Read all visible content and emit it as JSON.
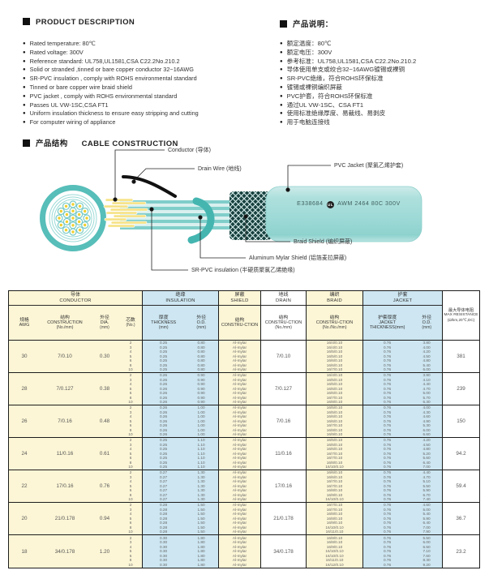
{
  "left_panel": {
    "heading": "PRODUCT DESCRIPTION",
    "items": [
      "Rated temperature: 80℃",
      "Rated voltage: 300V",
      "Reference standard: UL758,UL1581,CSA C22.2No.210.2",
      "Solid or stranded ,tinned or bare copper conductor 32~16AWG",
      "SR-PVC insulation , comply with ROHS environmental standard",
      "Tinned or bare copper wire braid shield",
      "PVC jacket , comply with ROHS environmental standard",
      "Passes UL VW-1SC,CSA FT1",
      "Uniform insulation thickness to ensure easy stripping and cutting",
      "For computer wiring of appliance"
    ]
  },
  "right_panel": {
    "heading": "产品说明：",
    "items": [
      "额定温度：80℃",
      "额定电压：300V",
      "参考标准：UL758,UL1581,CSA C22.2No.210.2",
      "导体使用单支或绞合32~16AWG镀锡或裸铜",
      "SR-PVC绝缘，符合ROHS环保标准",
      "镀锡或裸铜编织屏蔽",
      "PVC护套，符合ROHS环保标准",
      "通过UL VW-1SC、CSA FT1",
      "使用标准绝缘厚度、易裁线、易剥皮",
      "用于电脑连接线"
    ]
  },
  "construction": {
    "heading_cn": "产品结构",
    "heading_en": "CABLE CONSTRUCTION",
    "labels": {
      "conductor": "Conductor (导体)",
      "drain_wire": "Drain Wire (地线)",
      "pvc_jacket": "PVC Jacket (聚氯乙烯护套)",
      "braid_shield": "Braid Shield (编织屏蔽)",
      "aluminum_mylar": "Aluminum Mylar Shield (铝箔麦拉屏蔽)",
      "sr_pvc": "SR-PVC insulation (半硬质聚氯乙烯绝缘)"
    },
    "jacket_print": {
      "ul_file": "E338684",
      "ul_mark": "UL",
      "spec": "AWM 2464 80C 300V"
    },
    "colors": {
      "teal": "#57BEB9",
      "light_teal": "#A9DEDB",
      "yellow": "#F6E286",
      "braid_dark": "#17403e"
    }
  },
  "table": {
    "groups": [
      {
        "cn": "导体",
        "en": "CONDUCTOR"
      },
      {
        "cn": "绝缘",
        "en": "INSULATION"
      },
      {
        "cn": "屏蔽",
        "en": "SHIELD"
      },
      {
        "cn": "地线",
        "en": "DRAIN"
      },
      {
        "cn": "编织",
        "en": "BRAID"
      },
      {
        "cn": "护套",
        "en": "JACKET"
      }
    ],
    "resistance_header": {
      "cn": "最大导体电阻",
      "en": "MAX RESISTANCE",
      "unit": "(Ω/km,20℃,DC)"
    },
    "columns": [
      {
        "cn": "规格",
        "en": "AWG",
        "unit": ""
      },
      {
        "cn": "结构",
        "en": "CONSTRUCTION",
        "unit": "(No./mm)"
      },
      {
        "cn": "外径",
        "en": "DIA.",
        "unit": "(mm)"
      },
      {
        "cn": "芯数",
        "en": "",
        "unit": "(No.)"
      },
      {
        "cn": "厚度",
        "en": "THICKNESS",
        "unit": "(mm)"
      },
      {
        "cn": "外径",
        "en": "O.D.",
        "unit": "(mm)"
      },
      {
        "cn": "结构",
        "en": "CONSTRU-CTION",
        "unit": ""
      },
      {
        "cn": "结构",
        "en": "CONSTRU-CTION",
        "unit": "(No./mm)"
      },
      {
        "cn": "结构",
        "en": "CONSTRU-CTION",
        "unit": "(No./No./mm)"
      },
      {
        "cn": "护套厚度",
        "en": "JACKET THICKNESS(mm)",
        "unit": ""
      },
      {
        "cn": "外径",
        "en": "O.D.",
        "unit": "(mm)"
      }
    ],
    "rows": [
      {
        "awg": "30",
        "construction": "7/0.10",
        "dia": "0.30",
        "cores": [
          "2",
          "3",
          "4",
          "5",
          "6",
          "8",
          "10"
        ],
        "ins_thickness": "0.25",
        "ins_od": "0.80",
        "shield": "Al-mylar",
        "drain": "7/0.10",
        "braid": [
          "16/4/0.10",
          "16/4/0.10",
          "16/5/0.10",
          "16/5/0.10",
          "16/6/0.10",
          "16/6/0.10",
          "16/7/0.10"
        ],
        "jacket_thickness": "0.76",
        "jacket_od": [
          "3.80",
          "4.00",
          "4.20",
          "4.50",
          "4.80",
          "5.40",
          "6.00"
        ],
        "resistance": "381"
      },
      {
        "awg": "28",
        "construction": "7/0.127",
        "dia": "0.38",
        "cores": [
          "2",
          "3",
          "4",
          "5",
          "6",
          "8",
          "10"
        ],
        "ins_thickness": "0.26",
        "ins_od": "0.90",
        "shield": "Al-mylar",
        "drain": "7/0.127",
        "braid": [
          "16/4/0.10",
          "16/5/0.10",
          "16/5/0.10",
          "16/6/0.10",
          "16/6/0.10",
          "16/7/0.10",
          "16/8/0.10"
        ],
        "jacket_thickness": "0.76",
        "jacket_od": [
          "3.90",
          "4.10",
          "4.40",
          "4.70",
          "5.00",
          "5.70",
          "6.30"
        ],
        "resistance": "239"
      },
      {
        "awg": "26",
        "construction": "7/0.16",
        "dia": "0.48",
        "cores": [
          "2",
          "3",
          "4",
          "5",
          "6",
          "8",
          "10"
        ],
        "ins_thickness": "0.26",
        "ins_od": "1.00",
        "shield": "Al-mylar",
        "drain": "7/0.16",
        "braid": [
          "16/5/0.10",
          "16/5/0.10",
          "16/6/0.10",
          "16/6/0.10",
          "16/7/0.10",
          "16/8/0.10",
          "16/9/0.10"
        ],
        "jacket_thickness": "0.76",
        "jacket_od": [
          "4.00",
          "4.30",
          "4.60",
          "4.90",
          "5.30",
          "6.00",
          "6.60"
        ],
        "resistance": "150"
      },
      {
        "awg": "24",
        "construction": "11/0.16",
        "dia": "0.61",
        "cores": [
          "2",
          "3",
          "4",
          "5",
          "6",
          "8",
          "10"
        ],
        "ins_thickness": "0.25",
        "ins_od": "1.10",
        "shield": "Al-mylar",
        "drain": "11/0.16",
        "braid": [
          "16/5/0.10",
          "16/6/0.10",
          "16/6/0.10",
          "16/7/0.10",
          "16/7/0.10",
          "16/8/0.10",
          "16/10/0.10"
        ],
        "jacket_thickness": "0.76",
        "jacket_od": [
          "4.20",
          "4.50",
          "4.80",
          "5.20",
          "5.60",
          "6.40",
          "7.00"
        ],
        "resistance": "94.2"
      },
      {
        "awg": "22",
        "construction": "17/0.16",
        "dia": "0.76",
        "cores": [
          "2",
          "3",
          "4",
          "5",
          "6",
          "8",
          "10"
        ],
        "ins_thickness": "0.27",
        "ins_od": "1.30",
        "shield": "Al-mylar",
        "drain": "17/0.16",
        "braid": [
          "16/6/0.10",
          "16/6/0.10",
          "16/7/0.10",
          "16/7/0.10",
          "16/8/0.10",
          "16/9/0.10",
          "16/10/0.10"
        ],
        "jacket_thickness": "0.76",
        "jacket_od": [
          "4.40",
          "4.70",
          "5.10",
          "5.50",
          "5.90",
          "6.70",
          "7.40"
        ],
        "resistance": "59.4"
      },
      {
        "awg": "20",
        "construction": "21/0.178",
        "dia": "0.94",
        "cores": [
          "2",
          "3",
          "4",
          "5",
          "6",
          "8",
          "10"
        ],
        "ins_thickness": "0.28",
        "ins_od": "1.50",
        "shield": "Al-mylar",
        "drain": "21/0.178",
        "braid": [
          "16/7/0.10",
          "16/7/0.10",
          "16/8/0.10",
          "16/8/0.10",
          "16/9/0.10",
          "16/10/0.10",
          "16/11/0.10"
        ],
        "jacket_thickness": "0.76",
        "jacket_od": [
          "4.60",
          "5.00",
          "5.40",
          "5.90",
          "6.40",
          "7.00",
          "7.90"
        ],
        "resistance": "36.7"
      },
      {
        "awg": "18",
        "construction": "34/0.178",
        "dia": "1.20",
        "cores": [
          "2",
          "3",
          "4",
          "5",
          "6",
          "8",
          "10"
        ],
        "ins_thickness": "0.30",
        "ins_od": "1.80",
        "shield": "Al-mylar",
        "drain": "34/0.178",
        "braid": [
          "16/8/0.10",
          "16/8/0.10",
          "16/9/0.10",
          "16/10/0.10",
          "16/10/0.10",
          "16/11/0.10",
          "16/12/0.10"
        ],
        "jacket_thickness": "0.76",
        "jacket_od": [
          "5.50",
          "6.00",
          "6.50",
          "7.10",
          "7.60",
          "8.30",
          "9.20"
        ],
        "resistance": "23.2"
      }
    ]
  }
}
